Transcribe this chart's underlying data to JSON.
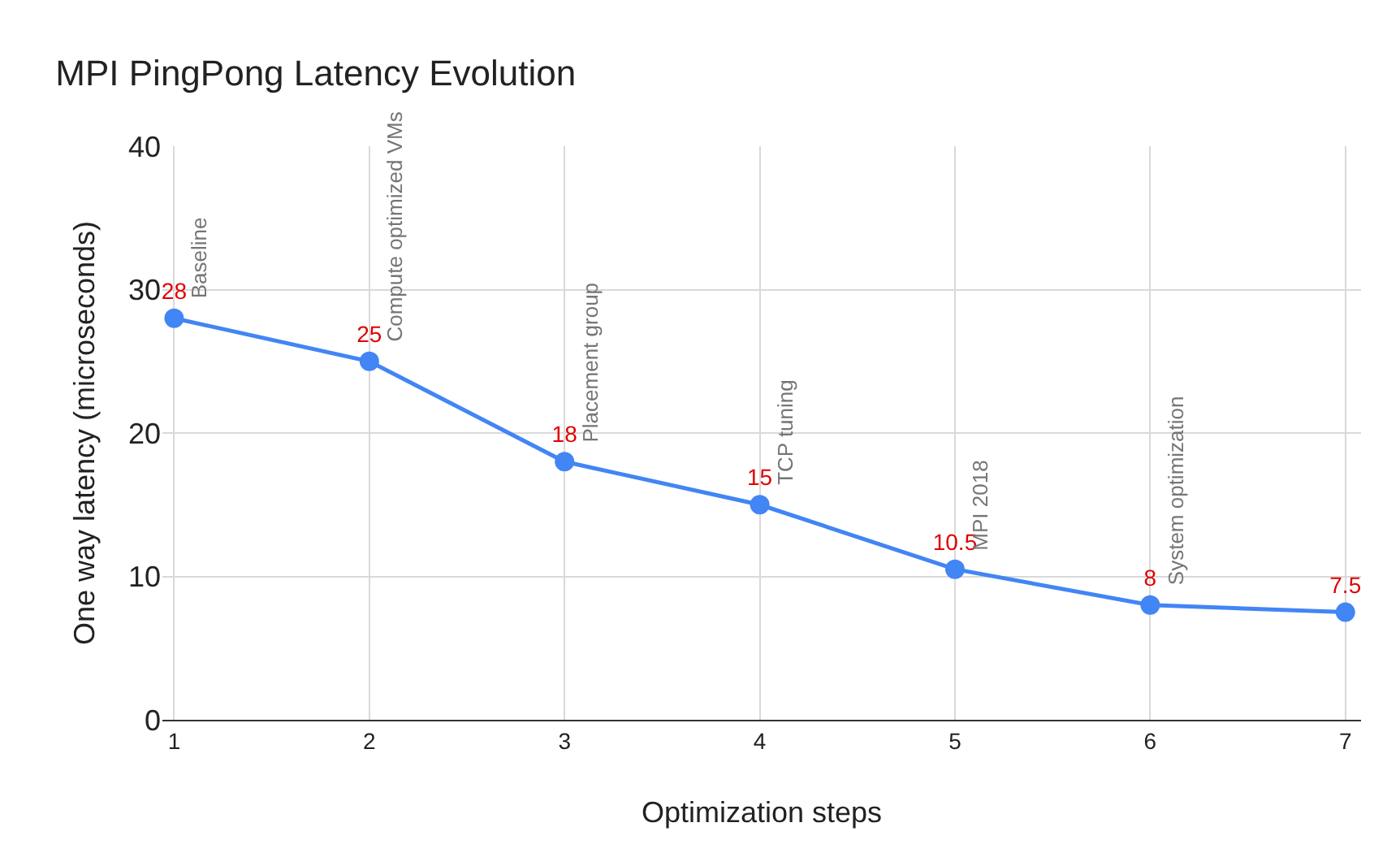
{
  "chart_data": {
    "type": "line",
    "title": "MPI PingPong Latency Evolution",
    "xlabel": "Optimization steps",
    "ylabel": "One way latency (microseconds)",
    "x": [
      1,
      2,
      3,
      4,
      5,
      6,
      7
    ],
    "series": [
      {
        "color": "#4285f4",
        "values": [
          28,
          25,
          18,
          15,
          10.5,
          8,
          7.5
        ]
      }
    ],
    "xlim": [
      0.94,
      7.08
    ],
    "xticks": [
      1,
      2,
      3,
      4,
      5,
      6,
      7
    ],
    "ylim": [
      0,
      40
    ],
    "yticks": [
      0,
      10,
      20,
      30,
      40
    ],
    "grid": true,
    "marker": "circle",
    "line_style": "solid",
    "data_labels": true,
    "annotations": [
      "Baseline",
      "Compute optimized VMs",
      "Placement group",
      "TCP tuning",
      "MPI 2018",
      "System optimization"
    ]
  }
}
